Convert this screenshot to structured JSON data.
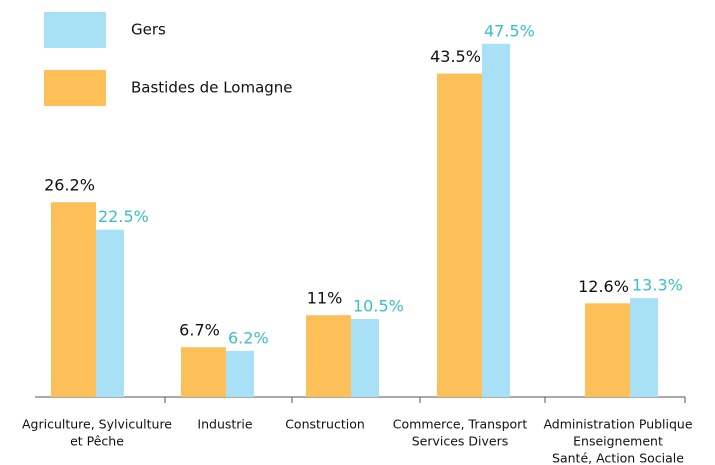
{
  "chart_data": {
    "type": "bar",
    "categories": [
      [
        "Agriculture, Sylviculture",
        "et Pêche"
      ],
      [
        "Industrie"
      ],
      [
        "Construction"
      ],
      [
        "Commerce, Transport",
        "Services Divers"
      ],
      [
        "Administration Publique",
        "Enseignement",
        "Santé, Action Sociale"
      ]
    ],
    "series": [
      {
        "name": "Bastides de Lomagne",
        "color": "#fdbf57",
        "values": [
          26.2,
          6.7,
          11,
          43.5,
          12.6
        ],
        "value_labels": [
          "26.2%",
          "6.7%",
          "11%",
          "43.5%",
          "12.6%"
        ],
        "label_color": "#111111"
      },
      {
        "name": "Gers",
        "color": "#a8e0f5",
        "values": [
          22.5,
          6.2,
          10.5,
          47.5,
          13.3
        ],
        "value_labels": [
          "22.5%",
          "6.2%",
          "10.5%",
          "47.5%",
          "13.3%"
        ],
        "label_color": "#3bbfc4"
      }
    ],
    "ylim": [
      0,
      53.4
    ]
  }
}
